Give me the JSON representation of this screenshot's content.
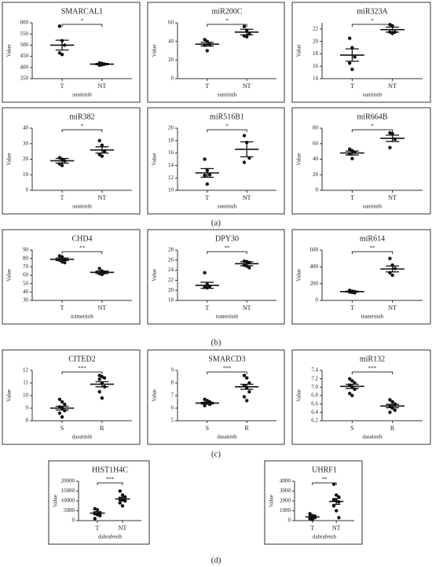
{
  "panel_labels": [
    "(a)",
    "(b)",
    "(c)",
    "(d)"
  ],
  "chart_data": [
    {
      "type": "strip",
      "title": "SMARCAL1",
      "y_label": "Value",
      "x_label": "sunitinib",
      "categories": [
        "T",
        "NT"
      ],
      "significance": "*",
      "ylim": [
        350,
        600
      ],
      "yticks": [
        350,
        400,
        450,
        500,
        550,
        600
      ],
      "groups": [
        {
          "values": [
            585,
            520,
            500,
            465,
            458
          ],
          "mean": 500,
          "sem": 22
        },
        {
          "values": [
            420,
            418,
            415,
            410,
            412
          ],
          "mean": 415,
          "sem": 3
        }
      ]
    },
    {
      "type": "strip",
      "title": "miR200C",
      "y_label": "Value",
      "x_label": "sunitinib",
      "categories": [
        "T",
        "NT"
      ],
      "significance": "*",
      "ylim": [
        0,
        60
      ],
      "yticks": [
        0,
        20,
        40,
        60
      ],
      "groups": [
        {
          "values": [
            42,
            40,
            37,
            36,
            30
          ],
          "mean": 37,
          "sem": 2
        },
        {
          "values": [
            56,
            52,
            48,
            46,
            45
          ],
          "mean": 50,
          "sem": 3
        }
      ]
    },
    {
      "type": "strip",
      "title": "miR323A",
      "y_label": "Value",
      "x_label": "sunitinib",
      "categories": [
        "T",
        "NT"
      ],
      "significance": "*",
      "ylim": [
        14,
        23
      ],
      "yticks": [
        14,
        16,
        18,
        20,
        22
      ],
      "groups": [
        {
          "values": [
            20.5,
            19,
            17.5,
            16.5,
            15.5
          ],
          "mean": 17.8,
          "sem": 1
        },
        {
          "values": [
            22.7,
            22.5,
            21.5,
            21.5,
            21.3
          ],
          "mean": 21.9,
          "sem": 0.4
        }
      ]
    },
    {
      "type": "strip",
      "title": "miR382",
      "y_label": "Value",
      "x_label": "sunitinib",
      "categories": [
        "T",
        "NT"
      ],
      "significance": "*",
      "ylim": [
        0,
        40
      ],
      "yticks": [
        0,
        10,
        20,
        30,
        40
      ],
      "groups": [
        {
          "values": [
            21,
            20,
            19,
            17,
            16
          ],
          "mean": 19,
          "sem": 1.5
        },
        {
          "values": [
            32,
            29,
            25,
            23,
            22
          ],
          "mean": 26,
          "sem": 2
        }
      ]
    },
    {
      "type": "strip",
      "title": "miR516B1",
      "y_label": "Value",
      "x_label": "sunitinib",
      "categories": [
        "T",
        "NT"
      ],
      "significance": "*",
      "ylim": [
        10,
        20
      ],
      "yticks": [
        10,
        12,
        14,
        16,
        18,
        20
      ],
      "groups": [
        {
          "values": [
            15,
            13.2,
            12.5,
            12.4,
            11
          ],
          "mean": 12.8,
          "sem": 0.7
        },
        {
          "values": [
            18.8,
            17.7,
            15.2,
            14.5
          ],
          "mean": 16.6,
          "sem": 1.2
        }
      ]
    },
    {
      "type": "strip",
      "title": "miR664B",
      "y_label": "Value",
      "x_label": "sunitinib",
      "categories": [
        "T",
        "NT"
      ],
      "significance": "*",
      "ylim": [
        0,
        80
      ],
      "yticks": [
        0,
        20,
        40,
        60,
        80
      ],
      "groups": [
        {
          "values": [
            53,
            51,
            49,
            47,
            41
          ],
          "mean": 48,
          "sem": 2.5
        },
        {
          "values": [
            74,
            73,
            66,
            55
          ],
          "mean": 67,
          "sem": 4
        }
      ]
    },
    {
      "type": "strip",
      "title": "CHD4",
      "y_label": "Value",
      "x_label": "trametinib",
      "categories": [
        "T",
        "NT"
      ],
      "significance": "**",
      "ylim": [
        30,
        90
      ],
      "yticks": [
        30,
        40,
        50,
        60,
        70,
        80,
        90
      ],
      "groups": [
        {
          "values": [
            83,
            82,
            79,
            78,
            76,
            75
          ],
          "mean": 79,
          "sem": 1.5
        },
        {
          "values": [
            68,
            65,
            63,
            62,
            61
          ],
          "mean": 63.5,
          "sem": 1.5
        }
      ]
    },
    {
      "type": "strip",
      "title": "DPY30",
      "y_label": "Value",
      "x_label": "trametinib",
      "categories": [
        "T",
        "NT"
      ],
      "significance": "**",
      "ylim": [
        18,
        28
      ],
      "yticks": [
        18,
        20,
        22,
        24,
        26,
        28
      ],
      "groups": [
        {
          "values": [
            23.5,
            21.2,
            20.8,
            20.6,
            20.5
          ],
          "mean": 21,
          "sem": 0.6
        },
        {
          "values": [
            25.8,
            25.7,
            25.5,
            25,
            24.8,
            24.5
          ],
          "mean": 25.3,
          "sem": 0.4
        }
      ]
    },
    {
      "type": "strip",
      "title": "miR614",
      "y_label": "Value",
      "x_label": "trametinib",
      "categories": [
        "T",
        "NT"
      ],
      "significance": "**",
      "ylim": [
        0,
        600
      ],
      "yticks": [
        0,
        200,
        400,
        600
      ],
      "groups": [
        {
          "values": [
            120,
            110,
            105,
            100,
            95,
            90
          ],
          "mean": 105,
          "sem": 5
        },
        {
          "values": [
            500,
            420,
            380,
            330,
            300
          ],
          "mean": 375,
          "sem": 35
        }
      ]
    },
    {
      "type": "strip",
      "title": "CITED2",
      "y_label": "Value",
      "x_label": "dasatinib",
      "categories": [
        "S",
        "R"
      ],
      "significance": "***",
      "ylim": [
        8,
        12
      ],
      "yticks": [
        8,
        9,
        10,
        11,
        12
      ],
      "groups": [
        {
          "values": [
            9.7,
            9.5,
            9.3,
            9.1,
            9.0,
            8.8,
            8.6,
            8.3
          ],
          "mean": 9.0,
          "sem": 0.15
        },
        {
          "values": [
            11.6,
            11.5,
            11.4,
            11.3,
            11.0,
            10.7,
            10.3,
            9.8
          ],
          "mean": 10.9,
          "sem": 0.2
        }
      ]
    },
    {
      "type": "strip",
      "title": "SMARCD3",
      "y_label": "Value",
      "x_label": "dasatinib",
      "categories": [
        "S",
        "R"
      ],
      "significance": "***",
      "ylim": [
        5,
        9
      ],
      "yticks": [
        5,
        6,
        7,
        8,
        9
      ],
      "groups": [
        {
          "values": [
            6.7,
            6.6,
            6.5,
            6.4,
            6.4,
            6.3,
            6.2
          ],
          "mean": 6.4,
          "sem": 0.07
        },
        {
          "values": [
            8.6,
            8.4,
            8.0,
            7.8,
            7.6,
            7.3,
            6.9,
            6.6
          ],
          "mean": 7.7,
          "sem": 0.2
        }
      ]
    },
    {
      "type": "strip",
      "title": "miR132",
      "y_label": "Value",
      "x_label": "dasatinib",
      "categories": [
        "S",
        "R"
      ],
      "significance": "***",
      "ylim": [
        6.2,
        7.4
      ],
      "yticks": [
        6.2,
        6.4,
        6.6,
        6.8,
        {
          "value": 7,
          "label": "7.0"
        },
        7.2,
        7.4
      ],
      "groups": [
        {
          "values": [
            7.2,
            7.15,
            7.1,
            7.05,
            7.0,
            6.95,
            6.85,
            6.8
          ],
          "mean": 7.02,
          "sem": 0.05
        },
        {
          "values": [
            6.7,
            6.65,
            6.6,
            6.55,
            6.5,
            6.45,
            6.4
          ],
          "mean": 6.55,
          "sem": 0.04
        }
      ]
    },
    {
      "type": "strip",
      "title": "HIST1H4C",
      "y_label": "Value",
      "x_label": "dabrafenib",
      "categories": [
        "T",
        "NT"
      ],
      "significance": "***",
      "ylim": [
        0,
        20000
      ],
      "yticks": [
        0,
        5000,
        10000,
        15000,
        20000
      ],
      "groups": [
        {
          "values": [
            6000,
            5500,
            4000,
            3500,
            3000,
            2500,
            1000
          ],
          "mean": 3800,
          "sem": 700
        },
        {
          "values": [
            15000,
            13000,
            12000,
            11000,
            10500,
            10000,
            9000,
            7500
          ],
          "mean": 11000,
          "sem": 900
        }
      ]
    },
    {
      "type": "strip",
      "title": "UHRF1",
      "y_label": "Value",
      "x_label": "dabrafenib",
      "categories": [
        "T",
        "NT"
      ],
      "significance": "**",
      "ylim": [
        0,
        4000
      ],
      "yticks": [
        0,
        1000,
        2000,
        3000,
        4000
      ],
      "groups": [
        {
          "values": [
            700,
            500,
            450,
            400,
            350,
            300,
            200,
            100
          ],
          "mean": 370,
          "sem": 80
        },
        {
          "values": [
            3700,
            2600,
            2400,
            2100,
            2000,
            1900,
            1500,
            1000,
            300
          ],
          "mean": 1950,
          "sem": 300
        }
      ]
    }
  ]
}
